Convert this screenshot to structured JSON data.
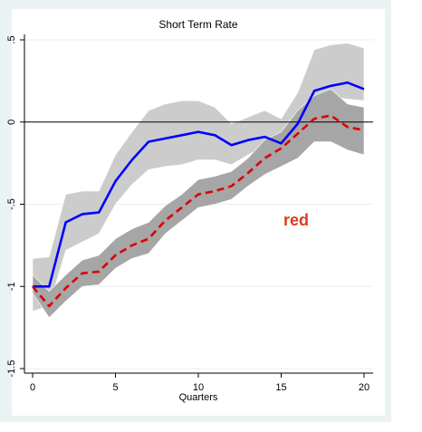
{
  "chart_data": {
    "type": "line",
    "title": "Short Term Rate",
    "xlabel": "Quarters",
    "ylabel": "",
    "xlim": [
      0,
      20
    ],
    "ylim": [
      -1.5,
      0.5
    ],
    "x_ticks": [
      0,
      5,
      10,
      15,
      20
    ],
    "y_ticks": [
      0.5,
      0,
      -0.5,
      -1,
      -1.5
    ],
    "y_tick_labels": [
      ".5",
      "0",
      "-.5",
      "-1",
      "-1.5"
    ],
    "grid": true,
    "reference_line": 0,
    "annotation": {
      "text": "red",
      "x": 15.9,
      "y": -0.63,
      "color": "#dd3b1e"
    },
    "x": [
      0,
      1,
      2,
      3,
      4,
      5,
      6,
      7,
      8,
      9,
      10,
      11,
      12,
      13,
      14,
      15,
      16,
      17,
      18,
      19,
      20
    ],
    "series": [
      {
        "color": "#0000ff",
        "style": "solid",
        "values": [
          -1.0,
          -1.0,
          -0.61,
          -0.56,
          -0.55,
          -0.36,
          -0.23,
          -0.12,
          -0.1,
          -0.08,
          -0.06,
          -0.08,
          -0.14,
          -0.11,
          -0.09,
          -0.13,
          -0.01,
          0.19,
          0.22,
          0.24,
          0.2
        ],
        "band_lower": [
          -1.15,
          -1.12,
          -0.78,
          -0.73,
          -0.68,
          -0.5,
          -0.38,
          -0.29,
          -0.27,
          -0.26,
          -0.23,
          -0.23,
          -0.26,
          -0.2,
          -0.15,
          -0.12,
          -0.03,
          0.03,
          0.15,
          0.14,
          0.13
        ],
        "band_upper": [
          -0.83,
          -0.82,
          -0.44,
          -0.42,
          -0.42,
          -0.2,
          -0.06,
          0.07,
          0.11,
          0.13,
          0.13,
          0.09,
          -0.01,
          0.03,
          0.07,
          0.02,
          0.18,
          0.44,
          0.47,
          0.48,
          0.45
        ],
        "band_color": "#cccccc"
      },
      {
        "color": "#dd0000",
        "style": "dashed",
        "values": [
          -1.0,
          -1.12,
          -1.01,
          -0.92,
          -0.91,
          -0.81,
          -0.75,
          -0.71,
          -0.6,
          -0.52,
          -0.44,
          -0.42,
          -0.39,
          -0.31,
          -0.22,
          -0.16,
          -0.07,
          0.02,
          0.04,
          -0.03,
          -0.05
        ],
        "band_lower": [
          -1.04,
          -1.19,
          -1.09,
          -1.0,
          -0.99,
          -0.89,
          -0.83,
          -0.8,
          -0.68,
          -0.6,
          -0.52,
          -0.5,
          -0.47,
          -0.39,
          -0.32,
          -0.27,
          -0.22,
          -0.12,
          -0.12,
          -0.17,
          -0.2
        ],
        "band_upper": [
          -0.93,
          -1.03,
          -0.93,
          -0.84,
          -0.81,
          -0.71,
          -0.65,
          -0.61,
          -0.51,
          -0.44,
          -0.35,
          -0.33,
          -0.3,
          -0.22,
          -0.11,
          -0.06,
          0.07,
          0.16,
          0.2,
          0.11,
          0.09
        ],
        "band_color": "#a6a6a6"
      }
    ]
  }
}
